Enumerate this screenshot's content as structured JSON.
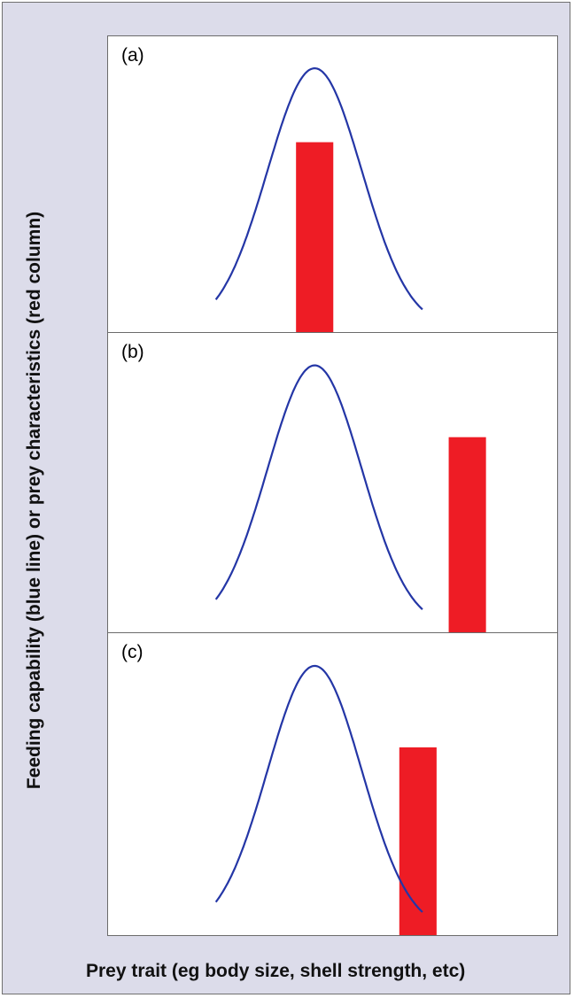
{
  "chart_data": {
    "type": "line",
    "xlabel": "Prey trait (eg body size, shell strength, etc)",
    "ylabel": "Feeding capability (blue line) or prey characteristics (red column)",
    "colors": {
      "line": "#2436a6",
      "column": "#ee1c25"
    },
    "panels": [
      {
        "label": "(a)",
        "curve": {
          "center": 0.46,
          "sd": 0.105,
          "peak": 0.88
        },
        "column": {
          "x": 0.46,
          "height": 0.63
        }
      },
      {
        "label": "(b)",
        "curve": {
          "center": 0.46,
          "sd": 0.105,
          "peak": 0.88
        },
        "column": {
          "x": 0.8,
          "height": 0.64
        }
      },
      {
        "label": "(c)",
        "curve": {
          "center": 0.46,
          "sd": 0.105,
          "peak": 0.88
        },
        "column": {
          "x": 0.69,
          "height": 0.61
        }
      }
    ]
  }
}
